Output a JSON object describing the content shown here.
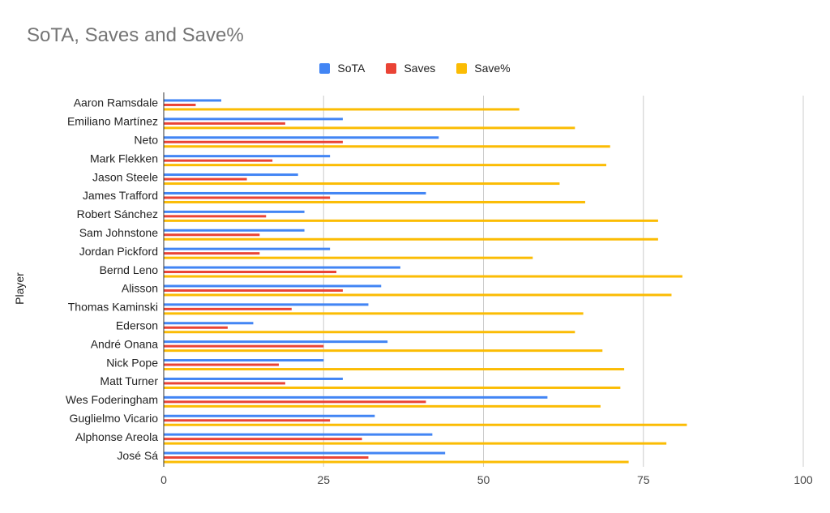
{
  "chart_data": {
    "type": "bar",
    "orientation": "horizontal",
    "title": "SoTA, Saves and Save%",
    "xlabel": "",
    "ylabel": "Player",
    "xlim": [
      0,
      100
    ],
    "xticks": [
      0,
      25,
      50,
      75,
      100
    ],
    "grid": true,
    "legend_position": "top",
    "categories": [
      "Aaron Ramsdale",
      "Emiliano Martínez",
      "Neto",
      "Mark Flekken",
      "Jason Steele",
      "James Trafford",
      "Robert Sánchez",
      "Sam Johnstone",
      "Jordan Pickford",
      "Bernd Leno",
      "Alisson",
      "Thomas Kaminski",
      "Ederson",
      "André Onana",
      "Nick Pope",
      "Matt Turner",
      "Wes Foderingham",
      "Guglielmo Vicario",
      "Alphonse Areola",
      "José Sá"
    ],
    "series": [
      {
        "name": "SoTA",
        "color": "#4285f4",
        "values": [
          9,
          28,
          43,
          26,
          21,
          41,
          22,
          22,
          26,
          37,
          34,
          32,
          14,
          35,
          25,
          28,
          60,
          33,
          42,
          44
        ]
      },
      {
        "name": "Saves",
        "color": "#ea4335",
        "values": [
          5,
          19,
          28,
          17,
          13,
          26,
          16,
          15,
          15,
          27,
          28,
          20,
          10,
          25,
          18,
          19,
          41,
          26,
          31,
          32
        ]
      },
      {
        "name": "Save%",
        "color": "#fbbc04",
        "values": [
          55.6,
          64.3,
          69.8,
          69.2,
          61.9,
          65.9,
          77.3,
          77.3,
          57.7,
          81.1,
          79.4,
          65.6,
          64.3,
          68.6,
          72.0,
          71.4,
          68.3,
          81.8,
          78.6,
          72.7
        ]
      }
    ]
  }
}
